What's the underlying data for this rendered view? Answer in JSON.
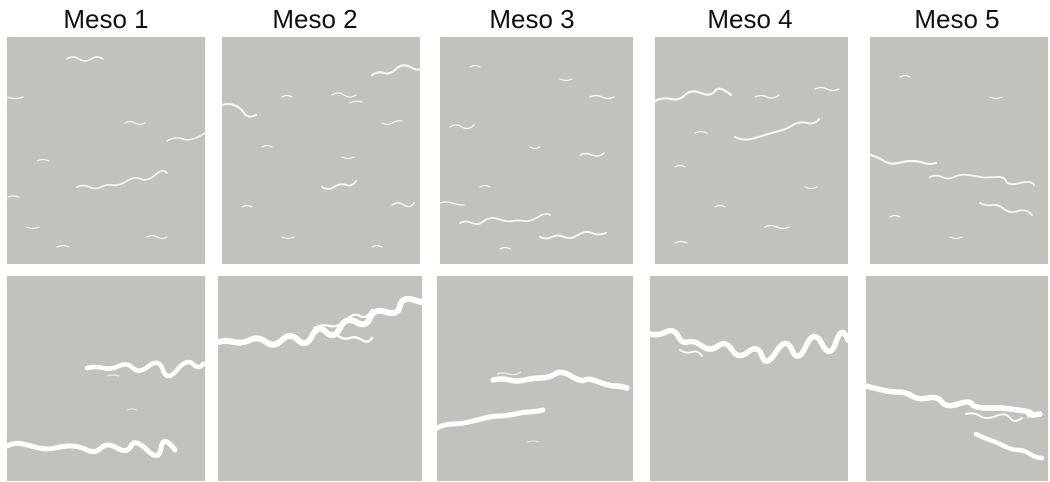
{
  "columns": [
    {
      "title": "Meso 1"
    },
    {
      "title": "Meso 2"
    },
    {
      "title": "Meso 3"
    },
    {
      "title": "Meso 4"
    },
    {
      "title": "Meso 5"
    }
  ],
  "colors": {
    "specimen": "#c2c1bc",
    "crack": "#ffffff",
    "background": "#ffffff",
    "text": "#111111"
  },
  "rows": [
    "early-damage",
    "final-crack"
  ]
}
